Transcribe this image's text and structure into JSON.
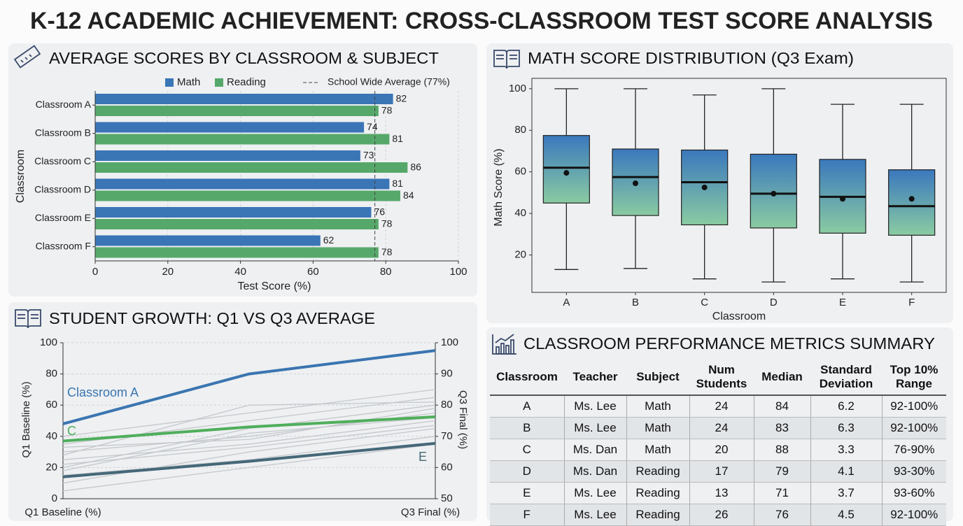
{
  "title": "K-12 ACADEMIC ACHIEVEMENT: CROSS-CLASSROOM TEST SCORE ANALYSIS",
  "chart_data": [
    {
      "type": "bar",
      "title": "AVERAGE SCORES BY CLASSROOM & SUBJECT",
      "categories": [
        "Classroom A",
        "Classroom B",
        "Classroom C",
        "Classroom D",
        "Classroom E",
        "Classroom F"
      ],
      "series": [
        {
          "name": "Math",
          "color": "#3a75b6",
          "values": [
            82,
            74,
            73,
            81,
            76,
            62
          ]
        },
        {
          "name": "Reading",
          "color": "#56a86a",
          "values": [
            78,
            81,
            86,
            84,
            78,
            78
          ]
        }
      ],
      "reference_line": {
        "value": 77,
        "label": "School Wide Average (77%)"
      },
      "xlim": [
        0,
        100
      ],
      "xticks": [
        0,
        20,
        40,
        60,
        80,
        100
      ],
      "xlabel": "Test Score (%)",
      "ylabel": "Classroom",
      "grid": true
    },
    {
      "type": "box",
      "title": "MATH SCORE DISTRIBUTION (Q3 Exam)",
      "categories": [
        "A",
        "B",
        "C",
        "D",
        "E",
        "F"
      ],
      "min": [
        13,
        13.5,
        8.5,
        7,
        8.5,
        7
      ],
      "q1": [
        45,
        39,
        34.5,
        33,
        30.5,
        29.5
      ],
      "median": [
        62,
        57.5,
        55,
        49.5,
        48,
        43.5
      ],
      "q3": [
        77.5,
        71,
        70.5,
        68.5,
        66,
        61
      ],
      "max": [
        100,
        100,
        97,
        100,
        92.5,
        92.5
      ],
      "mean": [
        59.5,
        54.5,
        52.5,
        49.5,
        47,
        47
      ],
      "colors": [
        "#3a78bd",
        "#8acba2"
      ],
      "ylim": [
        2,
        105
      ],
      "yticks": [
        20,
        40,
        60,
        80,
        100
      ],
      "xlabel": "Classroom",
      "ylabel": "Math Score (%)"
    },
    {
      "type": "line",
      "title": "STUDENT GROWTH: Q1 VS Q3 AVERAGE",
      "categories": [
        "Q1 Baseline (%)",
        null,
        "Q3 Final (%)"
      ],
      "series": [
        {
          "name": "Classroom A",
          "color": "#3a75b0",
          "values": [
            48,
            80,
            95
          ]
        },
        {
          "name": "C",
          "color": "#4fae5c",
          "values": [
            37,
            46,
            52.5
          ]
        },
        {
          "name": "E",
          "color": "#456878",
          "values": [
            14,
            24,
            35.5
          ]
        },
        {
          "color": "#c4c8cc",
          "values": [
            30,
            40,
            55
          ]
        },
        {
          "color": "#c4c8cc",
          "values": [
            25,
            35,
            50
          ]
        },
        {
          "color": "#c4c8cc",
          "values": [
            20,
            45,
            60
          ]
        },
        {
          "color": "#c4c8cc",
          "values": [
            35,
            50,
            65
          ]
        },
        {
          "color": "#c4c8cc",
          "values": [
            10,
            30,
            45
          ]
        },
        {
          "color": "#c4c8cc",
          "values": [
            15,
            25,
            40
          ]
        },
        {
          "color": "#c4c8cc",
          "values": [
            40,
            55,
            70
          ]
        },
        {
          "color": "#c4c8cc",
          "values": [
            28,
            60,
            62
          ]
        },
        {
          "color": "#c4c8cc",
          "values": [
            5,
            20,
            35
          ]
        },
        {
          "color": "#c4c8cc",
          "values": [
            33,
            38,
            58
          ]
        },
        {
          "color": "#c4c8cc",
          "values": [
            18,
            42,
            52
          ]
        },
        {
          "color": "#c4c8cc",
          "values": [
            22,
            33,
            47
          ]
        }
      ],
      "ylim": [
        0,
        100
      ],
      "yticks": [
        0,
        20,
        40,
        60,
        80,
        100
      ],
      "y2lim": [
        50,
        100
      ],
      "y2ticks": [
        50,
        60,
        70,
        80,
        90,
        100
      ],
      "ylabel": "Q1 Baseline (%)",
      "y2label": "Q3 Final (%)",
      "grid": true
    }
  ],
  "table": {
    "title": "CLASSROOM PERFORMANCE METRICS SUMMARY",
    "columns": [
      "Classroom",
      "Teacher",
      "Subject",
      "Num Students",
      "Median",
      "Standard Deviation",
      "Top 10% Range"
    ],
    "rows": [
      [
        "A",
        "Ms. Lee",
        "Math",
        24,
        84,
        6.2,
        "92-100%"
      ],
      [
        "B",
        "Ms. Lee",
        "Math",
        24,
        83,
        6.3,
        "92-100%"
      ],
      [
        "C",
        "Ms. Dan",
        "Math",
        20,
        88,
        3.3,
        "76-90%"
      ],
      [
        "D",
        "Ms. Dan",
        "Reading",
        17,
        79,
        4.1,
        "93-30%"
      ],
      [
        "E",
        "Ms. Lee",
        "Reading",
        13,
        71,
        3.7,
        "93-60%"
      ],
      [
        "F",
        "Ms. Lee",
        "Reading",
        26,
        76,
        4.5,
        "92-100%"
      ]
    ]
  }
}
